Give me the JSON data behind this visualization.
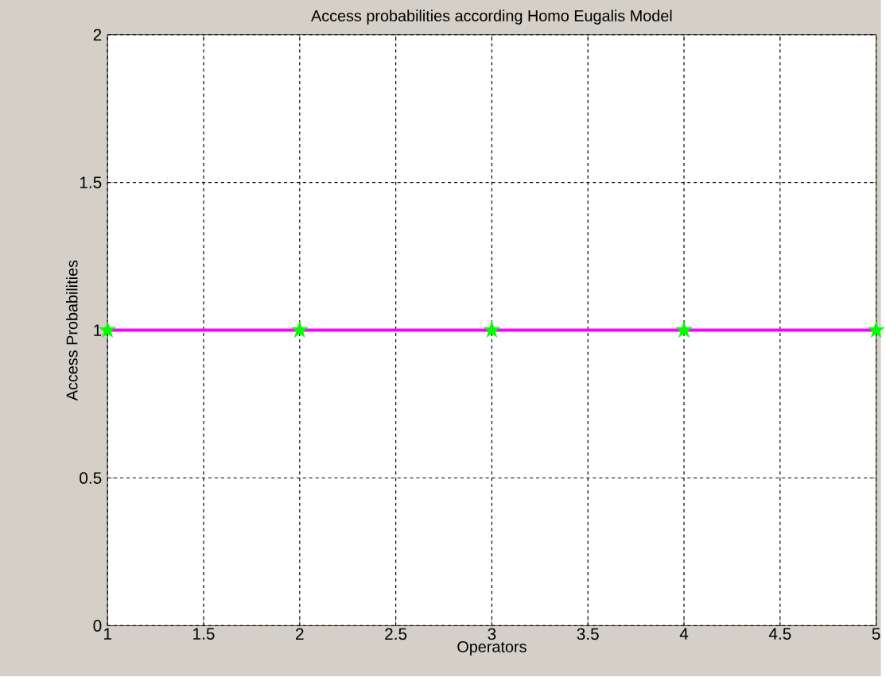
{
  "chart_data": {
    "type": "line",
    "title": "Access probabilities according Homo Eugalis Model",
    "xlabel": "Operators",
    "ylabel": "Access Probabilities",
    "x": [
      1,
      2,
      3,
      4,
      5
    ],
    "series": [
      {
        "color": "#ff00ff",
        "colors": [
          "#00ff00",
          "#00ff00",
          "#00ff00",
          "#00ff00",
          "#00ff00"
        ],
        "values": [
          1,
          1,
          1,
          1,
          1
        ]
      }
    ],
    "xlim": [
      1,
      5
    ],
    "ylim": [
      0,
      2
    ],
    "xticks": [
      1,
      1.5,
      2,
      2.5,
      3,
      3.5,
      4,
      4.5,
      5
    ],
    "yticks": [
      0,
      0.5,
      1,
      1.5,
      2
    ],
    "grid": true,
    "marker": "star",
    "line_style": "solid"
  }
}
